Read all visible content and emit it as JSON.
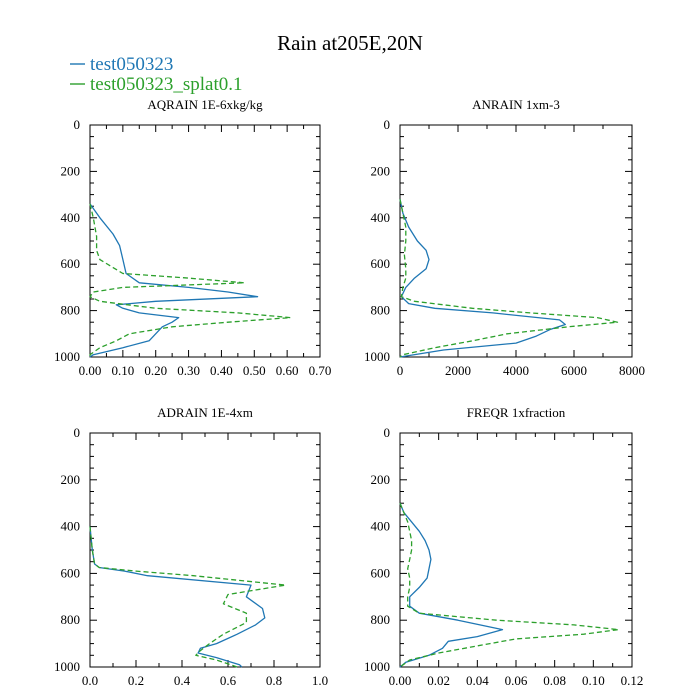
{
  "figure": {
    "title": "Rain at205E,20N",
    "legend": [
      {
        "label": "test050323",
        "color": "#1f77b4",
        "dash": "solid"
      },
      {
        "label": "test050323_splat0.1",
        "color": "#2ca02c",
        "dash": "dashed"
      }
    ]
  },
  "chart_data": [
    {
      "type": "line",
      "title": "AQRAIN  1E-6xkg/kg",
      "xlim": [
        0,
        0.7
      ],
      "xticks": [
        0,
        0.1,
        0.2,
        0.3,
        0.4,
        0.5,
        0.6,
        0.7
      ],
      "xtick_labels": [
        "0.00",
        "0.10",
        "0.20",
        "0.30",
        "0.40",
        "0.50",
        "0.60",
        "0.70"
      ],
      "ylim": [
        0,
        1000
      ],
      "yticks": [
        0,
        200,
        400,
        600,
        800,
        1000
      ],
      "ytick_labels": [
        "0",
        "200",
        "400",
        "600",
        "800",
        "1000"
      ],
      "y_inverted": true,
      "series": [
        {
          "name": "test050323",
          "y": [
            340,
            400,
            470,
            520,
            580,
            640,
            680,
            700,
            720,
            740,
            760,
            775,
            790,
            810,
            830,
            850,
            870,
            900,
            930,
            960,
            990,
            1000
          ],
          "x": [
            0.0,
            0.03,
            0.07,
            0.09,
            0.1,
            0.11,
            0.15,
            0.3,
            0.42,
            0.51,
            0.2,
            0.08,
            0.1,
            0.15,
            0.27,
            0.25,
            0.22,
            0.2,
            0.18,
            0.1,
            0.01,
            0.0
          ]
        },
        {
          "name": "test050323_splat0.1",
          "y": [
            340,
            400,
            480,
            540,
            580,
            640,
            660,
            680,
            700,
            720,
            740,
            760,
            790,
            810,
            830,
            850,
            870,
            900,
            930,
            960,
            990,
            1000
          ],
          "x": [
            0.0,
            0.01,
            0.02,
            0.02,
            0.03,
            0.1,
            0.3,
            0.47,
            0.1,
            0.01,
            0.0,
            0.03,
            0.2,
            0.45,
            0.61,
            0.42,
            0.25,
            0.12,
            0.08,
            0.03,
            0.0,
            0.0
          ]
        }
      ]
    },
    {
      "type": "line",
      "title": "ANRAIN  1xm-3",
      "xlim": [
        0,
        8000
      ],
      "xticks": [
        0,
        2000,
        4000,
        6000,
        8000
      ],
      "xtick_labels": [
        "0",
        "2000",
        "4000",
        "6000",
        "8000"
      ],
      "ylim": [
        0,
        1000
      ],
      "yticks": [
        0,
        200,
        400,
        600,
        800,
        1000
      ],
      "ytick_labels": [
        "0",
        "200",
        "400",
        "600",
        "800",
        "1000"
      ],
      "y_inverted": true,
      "series": [
        {
          "name": "test050323",
          "y": [
            320,
            380,
            440,
            500,
            540,
            580,
            620,
            660,
            700,
            740,
            770,
            790,
            810,
            840,
            860,
            880,
            910,
            940,
            970,
            1000
          ],
          "x": [
            0,
            100,
            300,
            600,
            900,
            1000,
            900,
            500,
            200,
            50,
            300,
            1200,
            3200,
            5500,
            5700,
            5200,
            4700,
            4000,
            1500,
            0
          ]
        },
        {
          "name": "test050323_splat0.1",
          "y": [
            320,
            380,
            440,
            500,
            560,
            620,
            660,
            700,
            740,
            760,
            790,
            810,
            830,
            850,
            870,
            900,
            930,
            960,
            990,
            1000
          ],
          "x": [
            0,
            100,
            200,
            200,
            150,
            200,
            200,
            100,
            50,
            500,
            2500,
            4500,
            6800,
            7500,
            5800,
            3700,
            2500,
            1200,
            100,
            0
          ]
        }
      ]
    },
    {
      "type": "line",
      "title": "ADRAIN  1E-4xm",
      "xlim": [
        0,
        1.0
      ],
      "xticks": [
        0,
        0.2,
        0.4,
        0.6,
        0.8,
        1.0
      ],
      "xtick_labels": [
        "0.0",
        "0.2",
        "0.4",
        "0.6",
        "0.8",
        "1.0"
      ],
      "ylim": [
        0,
        1000
      ],
      "yticks": [
        0,
        200,
        400,
        600,
        800,
        1000
      ],
      "ytick_labels": [
        "0",
        "200",
        "400",
        "600",
        "800",
        "1000"
      ],
      "y_inverted": true,
      "series": [
        {
          "name": "test050323",
          "y": [
            400,
            500,
            560,
            575,
            590,
            610,
            650,
            700,
            750,
            790,
            820,
            860,
            900,
            920,
            940,
            960,
            990,
            1000
          ],
          "x": [
            0.0,
            0.01,
            0.02,
            0.04,
            0.15,
            0.25,
            0.7,
            0.68,
            0.75,
            0.76,
            0.72,
            0.64,
            0.55,
            0.48,
            0.47,
            0.55,
            0.65,
            0.66
          ]
        },
        {
          "name": "test050323_splat0.1",
          "y": [
            400,
            500,
            560,
            575,
            590,
            610,
            650,
            690,
            730,
            770,
            810,
            860,
            900,
            930,
            950,
            970,
            1000
          ],
          "x": [
            0.0,
            0.01,
            0.02,
            0.04,
            0.2,
            0.45,
            0.85,
            0.6,
            0.58,
            0.68,
            0.68,
            0.58,
            0.52,
            0.48,
            0.46,
            0.55,
            0.64
          ]
        }
      ]
    },
    {
      "type": "line",
      "title": "FREQR  1xfraction",
      "xlim": [
        0,
        0.12
      ],
      "xticks": [
        0,
        0.02,
        0.04,
        0.06,
        0.08,
        0.1,
        0.12
      ],
      "xtick_labels": [
        "0.00",
        "0.02",
        "0.04",
        "0.06",
        "0.08",
        "0.10",
        "0.12"
      ],
      "ylim": [
        0,
        1000
      ],
      "yticks": [
        0,
        200,
        400,
        600,
        800,
        1000
      ],
      "ytick_labels": [
        "0",
        "200",
        "400",
        "600",
        "800",
        "1000"
      ],
      "y_inverted": true,
      "series": [
        {
          "name": "test050323",
          "y": [
            300,
            340,
            380,
            420,
            460,
            500,
            540,
            580,
            620,
            660,
            700,
            740,
            770,
            800,
            840,
            870,
            890,
            920,
            950,
            980,
            1000
          ],
          "x": [
            0.0,
            0.002,
            0.006,
            0.01,
            0.013,
            0.015,
            0.016,
            0.015,
            0.014,
            0.01,
            0.005,
            0.005,
            0.01,
            0.03,
            0.053,
            0.04,
            0.025,
            0.022,
            0.015,
            0.003,
            0.0
          ]
        },
        {
          "name": "test050323_splat0.1",
          "y": [
            300,
            340,
            380,
            420,
            460,
            500,
            540,
            580,
            620,
            660,
            700,
            740,
            770,
            800,
            820,
            840,
            860,
            880,
            910,
            940,
            970,
            1000
          ],
          "x": [
            0.0,
            0.002,
            0.004,
            0.005,
            0.006,
            0.006,
            0.005,
            0.004,
            0.005,
            0.005,
            0.004,
            0.004,
            0.01,
            0.05,
            0.09,
            0.113,
            0.095,
            0.06,
            0.04,
            0.02,
            0.005,
            0.0
          ]
        }
      ]
    }
  ]
}
